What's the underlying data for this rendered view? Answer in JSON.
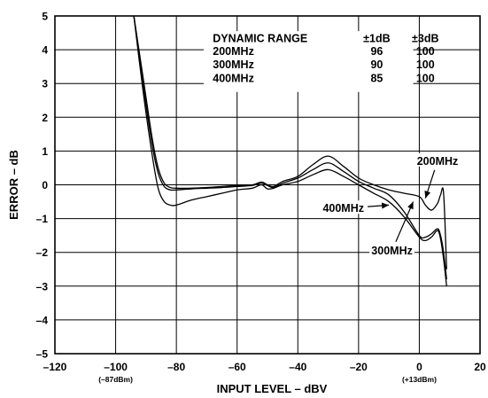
{
  "chart_data": {
    "type": "line",
    "title": "",
    "xlabel": "INPUT LEVEL – dBV",
    "ylabel": "ERROR – dB",
    "xlim": [
      -120,
      20
    ],
    "ylim": [
      -5,
      5
    ],
    "grid": true,
    "x_ticks": [
      {
        "value": -120,
        "label": "–120"
      },
      {
        "value": -100,
        "label": "–100",
        "sublabel": "(–87dBm)"
      },
      {
        "value": -80,
        "label": "–80"
      },
      {
        "value": -60,
        "label": "–60"
      },
      {
        "value": -40,
        "label": "–40"
      },
      {
        "value": -20,
        "label": "–20"
      },
      {
        "value": 0,
        "label": "0",
        "sublabel": "(+13dBm)"
      },
      {
        "value": 20,
        "label": "20"
      }
    ],
    "y_ticks": [
      {
        "value": 5,
        "label": "5"
      },
      {
        "value": 4,
        "label": "4"
      },
      {
        "value": 3,
        "label": "3"
      },
      {
        "value": 2,
        "label": "2"
      },
      {
        "value": 1,
        "label": "1"
      },
      {
        "value": 0,
        "label": "0"
      },
      {
        "value": -1,
        "label": "–1"
      },
      {
        "value": -2,
        "label": "–2"
      },
      {
        "value": -3,
        "label": "–3"
      },
      {
        "value": -4,
        "label": "–4"
      },
      {
        "value": -5,
        "label": "–5"
      }
    ],
    "table": {
      "headers": [
        "DYNAMIC RANGE",
        "±1dB",
        "±3dB"
      ],
      "rows": [
        [
          "200MHz",
          "96",
          "100"
        ],
        [
          "300MHz",
          "90",
          "100"
        ],
        [
          "400MHz",
          "85",
          "100"
        ]
      ]
    },
    "series": [
      {
        "name": "200MHz",
        "x": [
          -94,
          -91,
          -88,
          -86,
          -84,
          -82,
          -80,
          -75,
          -70,
          -65,
          -60,
          -55,
          -52,
          -50,
          -48,
          -45,
          -40,
          -35,
          -30,
          -25,
          -20,
          -15,
          -10,
          -5,
          0,
          2,
          4,
          6,
          7,
          8,
          9
        ],
        "y": [
          5,
          3.2,
          1.4,
          0.5,
          0.05,
          -0.08,
          -0.1,
          -0.1,
          -0.08,
          -0.05,
          -0.02,
          0.0,
          0.08,
          0.0,
          -0.05,
          0.1,
          0.25,
          0.6,
          0.85,
          0.55,
          0.2,
          0.0,
          -0.15,
          -0.25,
          -0.35,
          -0.6,
          -0.75,
          -0.55,
          -0.3,
          -0.25,
          -2.5
        ]
      },
      {
        "name": "300MHz",
        "x": [
          -94,
          -91,
          -88,
          -86,
          -84,
          -82,
          -80,
          -75,
          -70,
          -65,
          -60,
          -55,
          -52,
          -50,
          -48,
          -45,
          -40,
          -35,
          -30,
          -25,
          -20,
          -15,
          -10,
          -5,
          0,
          2,
          4,
          6,
          7,
          8,
          9
        ],
        "y": [
          5,
          3.0,
          1.2,
          0.35,
          -0.05,
          -0.15,
          -0.15,
          -0.12,
          -0.1,
          -0.08,
          -0.05,
          -0.02,
          0.05,
          -0.02,
          -0.08,
          0.05,
          0.2,
          0.45,
          0.65,
          0.4,
          0.1,
          -0.1,
          -0.3,
          -0.8,
          -1.5,
          -1.55,
          -1.45,
          -1.3,
          -1.5,
          -2.0,
          -2.8
        ]
      },
      {
        "name": "400MHz",
        "x": [
          -94,
          -91,
          -88,
          -86,
          -84,
          -82,
          -80,
          -75,
          -70,
          -65,
          -60,
          -55,
          -52,
          -50,
          -48,
          -45,
          -40,
          -35,
          -30,
          -25,
          -20,
          -15,
          -10,
          -5,
          0,
          2,
          4,
          6,
          7,
          8,
          9
        ],
        "y": [
          5,
          2.8,
          0.9,
          -0.1,
          -0.5,
          -0.6,
          -0.6,
          -0.45,
          -0.35,
          -0.25,
          -0.15,
          -0.1,
          0.0,
          -0.12,
          -0.1,
          0.0,
          0.1,
          0.3,
          0.45,
          0.25,
          0.0,
          -0.25,
          -0.5,
          -0.95,
          -1.55,
          -1.65,
          -1.55,
          -1.35,
          -1.6,
          -2.2,
          -3.0
        ]
      }
    ],
    "annotations": [
      {
        "text": "200MHz",
        "x": 6,
        "y": 0.7,
        "arrow_to": [
          2,
          -0.4
        ]
      },
      {
        "text": "400MHz",
        "x": -25,
        "y": -0.7,
        "arrow_to": [
          -10,
          -0.6
        ]
      },
      {
        "text": "300MHz",
        "x": -9,
        "y": -1.95,
        "arrow_to": [
          -2,
          -0.5
        ]
      }
    ]
  }
}
